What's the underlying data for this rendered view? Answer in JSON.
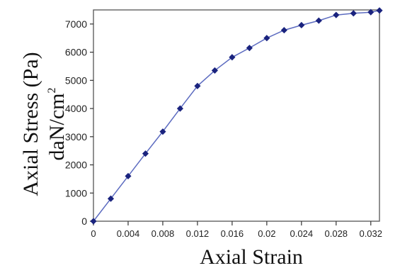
{
  "chart_data": {
    "type": "line",
    "xlabel": "Axial Strain",
    "ylabel_line1": "Axial Stress (Pa)",
    "ylabel_line2_base": "daN/cm",
    "ylabel_line2_sup": "2",
    "xlim": [
      0,
      0.033
    ],
    "ylim": [
      0,
      7500
    ],
    "x_ticks": [
      {
        "value": 0,
        "label": "0"
      },
      {
        "value": 0.004,
        "label": "0.004"
      },
      {
        "value": 0.008,
        "label": "0.008"
      },
      {
        "value": 0.012,
        "label": "0.012"
      },
      {
        "value": 0.016,
        "label": "0.016"
      },
      {
        "value": 0.02,
        "label": "0.02"
      },
      {
        "value": 0.024,
        "label": "0.024"
      },
      {
        "value": 0.028,
        "label": "0.028"
      },
      {
        "value": 0.032,
        "label": "0.032"
      }
    ],
    "y_ticks": [
      {
        "value": 0,
        "label": "0"
      },
      {
        "value": 1000,
        "label": "1000"
      },
      {
        "value": 2000,
        "label": "2000"
      },
      {
        "value": 3000,
        "label": "3000"
      },
      {
        "value": 4000,
        "label": "4000"
      },
      {
        "value": 5000,
        "label": "5000"
      },
      {
        "value": 6000,
        "label": "6000"
      },
      {
        "value": 7000,
        "label": "7000"
      }
    ],
    "grid": false,
    "series": [
      {
        "color": "#1a237e",
        "line_color": "#5c6bc0",
        "marker": "diamond",
        "x": [
          0,
          0.002,
          0.004,
          0.006,
          0.008,
          0.01,
          0.012,
          0.014,
          0.016,
          0.018,
          0.02,
          0.022,
          0.024,
          0.026,
          0.028,
          0.03,
          0.032,
          0.033
        ],
        "y": [
          0,
          800,
          1600,
          2400,
          3180,
          4000,
          4800,
          5350,
          5820,
          6150,
          6500,
          6780,
          6960,
          7120,
          7320,
          7380,
          7420,
          7480
        ]
      }
    ]
  }
}
